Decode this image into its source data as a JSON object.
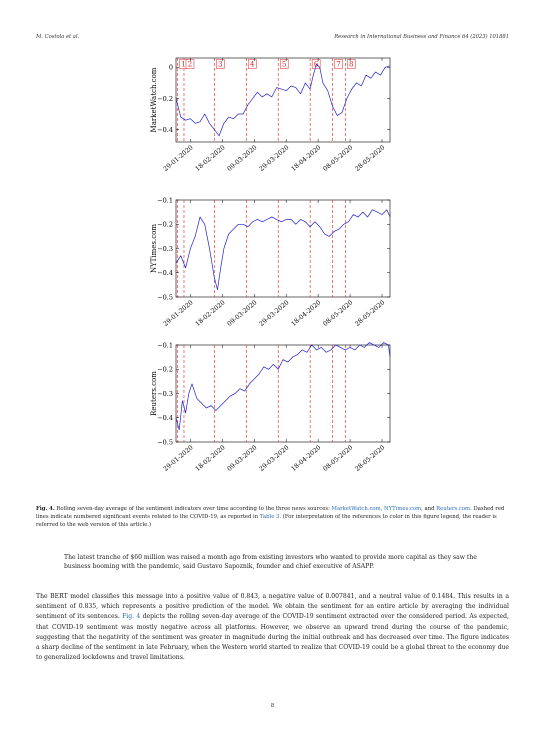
{
  "header": {
    "left": "M. Costola et al.",
    "right": "Research in International Business and Finance 64 (2023) 101881"
  },
  "chart_data": [
    {
      "type": "line",
      "ylabel": "MarketWatch.com",
      "yticks": [
        "0",
        "−0.2",
        "−0.4"
      ],
      "ytick_values": [
        0,
        -0.2,
        -0.4
      ],
      "ylim": [
        -0.48,
        0.06
      ],
      "xticks": [
        "29-01-2020",
        "18-02-2020",
        "09-03-2020",
        "29-03-2020",
        "18-04-2020",
        "08-05-2020",
        "28-05-2020"
      ],
      "event_labels": [
        "1",
        "2",
        "3",
        "4",
        "5",
        "6",
        "7",
        "8"
      ],
      "event_days": [
        1,
        5,
        24,
        44,
        64,
        84,
        98,
        106
      ],
      "series_color": "#2222cc",
      "event_color": "#e02020",
      "days": [
        0,
        3,
        6,
        9,
        12,
        15,
        18,
        21,
        24,
        27,
        30,
        33,
        36,
        39,
        42,
        45,
        48,
        51,
        54,
        57,
        60,
        63,
        66,
        69,
        72,
        75,
        78,
        81,
        84,
        86,
        88,
        90,
        92,
        95,
        98,
        101,
        104,
        107,
        110,
        113,
        116,
        119,
        122,
        125,
        128,
        131,
        134
      ],
      "values": [
        -0.2,
        -0.32,
        -0.34,
        -0.33,
        -0.36,
        -0.35,
        -0.3,
        -0.36,
        -0.4,
        -0.44,
        -0.36,
        -0.32,
        -0.33,
        -0.3,
        -0.3,
        -0.24,
        -0.2,
        -0.16,
        -0.19,
        -0.17,
        -0.19,
        -0.13,
        -0.14,
        -0.15,
        -0.12,
        -0.13,
        -0.17,
        -0.1,
        -0.14,
        -0.05,
        0.02,
        0.0,
        -0.1,
        -0.15,
        -0.25,
        -0.31,
        -0.29,
        -0.2,
        -0.14,
        -0.1,
        -0.12,
        -0.05,
        -0.07,
        -0.03,
        -0.05,
        0.0,
        0.01
      ]
    },
    {
      "type": "line",
      "ylabel": "NYTimes.com",
      "yticks": [
        "−0.1",
        "−0.2",
        "−0.3",
        "−0.4",
        "−0.5"
      ],
      "ytick_values": [
        -0.1,
        -0.2,
        -0.3,
        -0.4,
        -0.5
      ],
      "ylim": [
        -0.5,
        -0.1
      ],
      "xticks": [
        "29-01-2020",
        "18-02-2020",
        "09-03-2020",
        "29-03-2020",
        "18-04-2020",
        "08-05-2020",
        "28-05-2020"
      ],
      "event_days": [
        1,
        5,
        24,
        44,
        64,
        84,
        98,
        106
      ],
      "series_color": "#2222cc",
      "event_color": "#e02020",
      "days": [
        0,
        3,
        6,
        9,
        12,
        15,
        18,
        21,
        24,
        26,
        28,
        30,
        33,
        36,
        39,
        42,
        45,
        48,
        51,
        54,
        57,
        60,
        63,
        66,
        69,
        72,
        75,
        78,
        81,
        84,
        87,
        90,
        93,
        96,
        99,
        102,
        105,
        108,
        111,
        114,
        117,
        120,
        123,
        126,
        129,
        132,
        134
      ],
      "values": [
        -0.36,
        -0.33,
        -0.38,
        -0.3,
        -0.25,
        -0.17,
        -0.2,
        -0.3,
        -0.42,
        -0.47,
        -0.38,
        -0.3,
        -0.24,
        -0.22,
        -0.2,
        -0.2,
        -0.21,
        -0.19,
        -0.18,
        -0.19,
        -0.18,
        -0.17,
        -0.18,
        -0.19,
        -0.18,
        -0.18,
        -0.2,
        -0.18,
        -0.19,
        -0.21,
        -0.19,
        -0.21,
        -0.24,
        -0.25,
        -0.23,
        -0.22,
        -0.2,
        -0.19,
        -0.16,
        -0.17,
        -0.15,
        -0.17,
        -0.14,
        -0.15,
        -0.16,
        -0.14,
        -0.17
      ]
    },
    {
      "type": "line",
      "ylabel": "Reuters.com",
      "yticks": [
        "−0.1",
        "−0.2",
        "−0.3",
        "−0.4",
        "−0.5"
      ],
      "ytick_values": [
        -0.1,
        -0.2,
        -0.3,
        -0.4,
        -0.5
      ],
      "ylim": [
        -0.5,
        -0.1
      ],
      "xticks": [
        "29-01-2020",
        "18-02-2020",
        "09-03-2020",
        "29-03-2020",
        "18-04-2020",
        "08-05-2020",
        "28-05-2020"
      ],
      "event_days": [
        1,
        5,
        24,
        44,
        64,
        84,
        98,
        106
      ],
      "series_color": "#2222cc",
      "event_color": "#e02020",
      "days": [
        0,
        2,
        4,
        6,
        8,
        10,
        13,
        16,
        19,
        22,
        25,
        28,
        31,
        34,
        37,
        40,
        43,
        46,
        49,
        52,
        55,
        58,
        61,
        64,
        67,
        70,
        73,
        76,
        79,
        82,
        85,
        88,
        91,
        94,
        97,
        100,
        103,
        106,
        109,
        112,
        115,
        118,
        121,
        124,
        127,
        130,
        133,
        134
      ],
      "values": [
        -0.4,
        -0.45,
        -0.33,
        -0.38,
        -0.3,
        -0.26,
        -0.32,
        -0.34,
        -0.36,
        -0.35,
        -0.37,
        -0.35,
        -0.33,
        -0.31,
        -0.3,
        -0.28,
        -0.29,
        -0.26,
        -0.24,
        -0.22,
        -0.19,
        -0.2,
        -0.18,
        -0.2,
        -0.16,
        -0.17,
        -0.15,
        -0.14,
        -0.12,
        -0.13,
        -0.1,
        -0.12,
        -0.11,
        -0.13,
        -0.12,
        -0.1,
        -0.11,
        -0.12,
        -0.11,
        -0.12,
        -0.1,
        -0.11,
        -0.09,
        -0.1,
        -0.11,
        -0.09,
        -0.1,
        -0.15
      ]
    }
  ],
  "caption": {
    "label": "Fig. 4.",
    "text1": "Rolling seven-day average of the sentiment indicators over time according to the three news sources:",
    "src1": "MarketWatch.com",
    "sep1": ",",
    "src2": "NYTimes.com",
    "sep2": ", and",
    "src3": "Reuters.com",
    "text2": ". Dashed red lines indicate numbered significant events related to the COVID-19, as reported in",
    "table_ref": "Table 3",
    "text3": ". (For interpretation of the references to color in this figure legend, the reader is referred to the web version of this article.)"
  },
  "quote": "The latest tranche of $60 million was raised a month ago from existing investors who wanted to provide more capital as they saw the business booming with the pandemic, said Gustavo Sapoznik, founder and chief executive of ASAPP.",
  "body": {
    "part1": "The BERT model classifies this message into a positive value of 0.843, a negative value of 0.007841, and a neutral value of 0.1484. This results in a sentiment of 0.835, which represents a positive prediction of the model. We obtain the sentiment for an entire article by averaging the individual sentiment of its sentences.",
    "fig_ref": "Fig. 4",
    "part2": "depicts the rolling seven-day average of the COVID-19 sentiment extracted over the considered period. As expected, that COVID-19 sentiment was mostly negative across all platforms. However, we observe an upward trend during the course of the pandemic, suggesting that the negativity of the sentiment was greater in magnitude during the initial outbreak and has decreased over time. The figure indicates a sharp decline of the sentiment in late February, when the Western world started to realize that COVID-19 could be a global threat to the economy due to generalized lockdowns and travel limitations."
  },
  "page_number": "8"
}
